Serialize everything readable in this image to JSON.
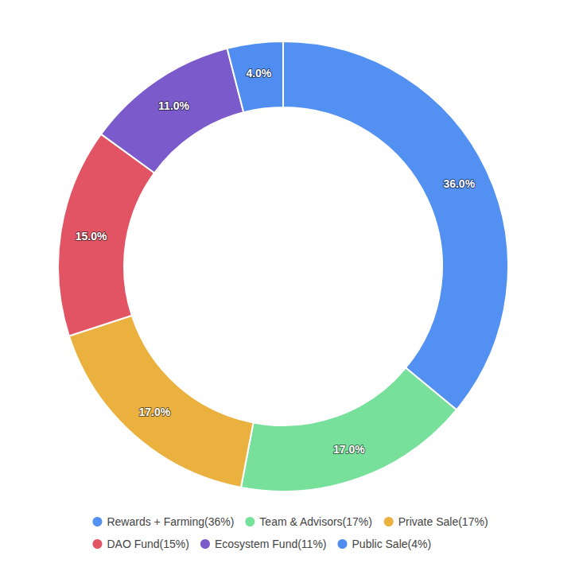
{
  "chart_data": {
    "type": "pie",
    "categories": [
      "Rewards + Farming(36%)",
      "Team & Advisors(17%)",
      "Private Sale(17%)",
      "DAO Fund(15%)",
      "Ecosystem Fund(11%)",
      "Public Sale(4%)"
    ],
    "values": [
      36,
      17,
      17,
      15,
      11,
      4
    ],
    "value_labels": [
      "36.0%",
      "17.0%",
      "17.0%",
      "15.0%",
      "11.0%",
      "4.0%"
    ],
    "colors": [
      "#5290f2",
      "#77e09b",
      "#ebb13e",
      "#e25464",
      "#7b5bcb",
      "#4f8df0"
    ],
    "data_labels": true,
    "legend": "bottom"
  }
}
